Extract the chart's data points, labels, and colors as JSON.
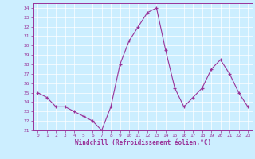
{
  "x": [
    0,
    1,
    2,
    3,
    4,
    5,
    6,
    7,
    8,
    9,
    10,
    11,
    12,
    13,
    14,
    15,
    16,
    17,
    18,
    19,
    20,
    21,
    22,
    23
  ],
  "y": [
    25.0,
    24.5,
    23.5,
    23.5,
    23.0,
    22.5,
    22.0,
    21.0,
    23.5,
    28.0,
    30.5,
    32.0,
    33.5,
    34.0,
    29.5,
    25.5,
    23.5,
    24.5,
    25.5,
    27.5,
    28.5,
    27.0,
    25.0,
    23.5
  ],
  "xlim": [
    -0.5,
    23.5
  ],
  "ylim": [
    21,
    34.5
  ],
  "yticks": [
    21,
    22,
    23,
    24,
    25,
    26,
    27,
    28,
    29,
    30,
    31,
    32,
    33,
    34
  ],
  "xticks": [
    0,
    1,
    2,
    3,
    4,
    5,
    6,
    7,
    8,
    9,
    10,
    11,
    12,
    13,
    14,
    15,
    16,
    17,
    18,
    19,
    20,
    21,
    22,
    23
  ],
  "xlabel": "Windchill (Refroidissement éolien,°C)",
  "line_color": "#993399",
  "marker": "+",
  "bg_color": "#cceeff",
  "grid_color": "#ffffff",
  "tick_color": "#993399",
  "label_color": "#993399",
  "axis_color": "#993399",
  "figsize": [
    3.2,
    2.0
  ],
  "dpi": 100
}
